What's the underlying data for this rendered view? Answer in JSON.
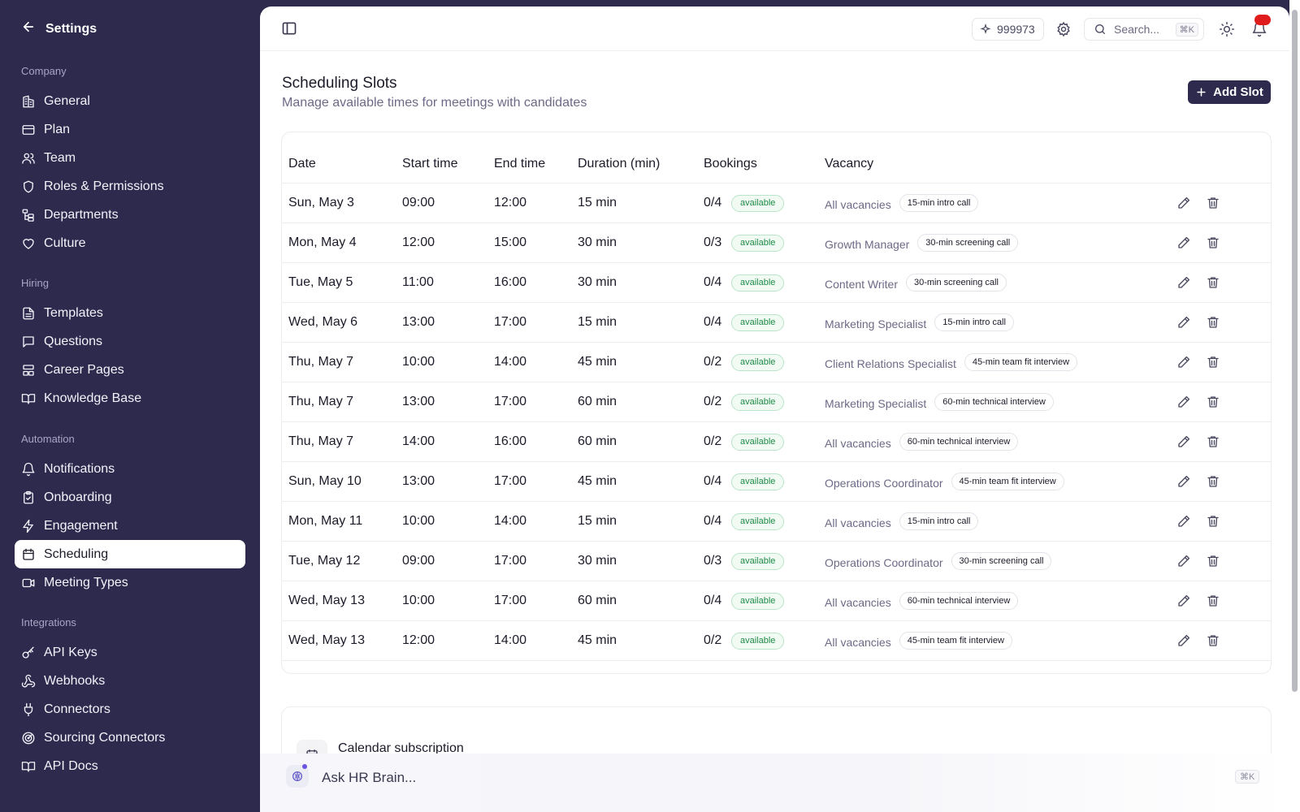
{
  "sidebar": {
    "title": "Settings",
    "sections": [
      {
        "label": "Company",
        "items": [
          {
            "label": "General",
            "icon": "building-icon"
          },
          {
            "label": "Plan",
            "icon": "credit-card-icon"
          },
          {
            "label": "Team",
            "icon": "users-icon"
          },
          {
            "label": "Roles & Permissions",
            "icon": "shield-icon"
          },
          {
            "label": "Departments",
            "icon": "org-chart-icon"
          },
          {
            "label": "Culture",
            "icon": "heart-icon"
          }
        ]
      },
      {
        "label": "Hiring",
        "items": [
          {
            "label": "Templates",
            "icon": "file-text-icon"
          },
          {
            "label": "Questions",
            "icon": "message-square-icon"
          },
          {
            "label": "Career Pages",
            "icon": "layout-icon"
          },
          {
            "label": "Knowledge Base",
            "icon": "book-open-icon"
          }
        ]
      },
      {
        "label": "Automation",
        "items": [
          {
            "label": "Notifications",
            "icon": "bell-icon"
          },
          {
            "label": "Onboarding",
            "icon": "clipboard-check-icon"
          },
          {
            "label": "Engagement",
            "icon": "zap-icon"
          },
          {
            "label": "Scheduling",
            "icon": "calendar-icon",
            "active": true
          },
          {
            "label": "Meeting Types",
            "icon": "video-icon"
          }
        ]
      },
      {
        "label": "Integrations",
        "items": [
          {
            "label": "API Keys",
            "icon": "key-icon"
          },
          {
            "label": "Webhooks",
            "icon": "webhook-icon"
          },
          {
            "label": "Connectors",
            "icon": "plug-icon"
          },
          {
            "label": "Sourcing Connectors",
            "icon": "radar-icon"
          },
          {
            "label": "API Docs",
            "icon": "book-icon"
          }
        ]
      }
    ]
  },
  "topbar": {
    "credits": "999973",
    "search_placeholder": "Search...",
    "search_shortcut": "⌘K"
  },
  "page": {
    "title": "Scheduling Slots",
    "subtitle": "Manage available times for meetings with candidates",
    "add_button": "Add Slot"
  },
  "table": {
    "columns": [
      "Date",
      "Start time",
      "End time",
      "Duration (min)",
      "Bookings",
      "Vacancy"
    ],
    "rows": [
      {
        "date": "Sun, May 3",
        "start": "09:00",
        "end": "12:00",
        "duration": "15 min",
        "bookings": "0/4",
        "status": "available",
        "vacancy": "All vacancies",
        "meeting": "15-min intro call"
      },
      {
        "date": "Mon, May 4",
        "start": "12:00",
        "end": "15:00",
        "duration": "30 min",
        "bookings": "0/3",
        "status": "available",
        "vacancy": "Growth Manager",
        "meeting": "30-min screening call"
      },
      {
        "date": "Tue, May 5",
        "start": "11:00",
        "end": "16:00",
        "duration": "30 min",
        "bookings": "0/4",
        "status": "available",
        "vacancy": "Content Writer",
        "meeting": "30-min screening call"
      },
      {
        "date": "Wed, May 6",
        "start": "13:00",
        "end": "17:00",
        "duration": "15 min",
        "bookings": "0/4",
        "status": "available",
        "vacancy": "Marketing Specialist",
        "meeting": "15-min intro call"
      },
      {
        "date": "Thu, May 7",
        "start": "10:00",
        "end": "14:00",
        "duration": "45 min",
        "bookings": "0/2",
        "status": "available",
        "vacancy": "Client Relations Specialist",
        "meeting": "45-min team fit interview"
      },
      {
        "date": "Thu, May 7",
        "start": "13:00",
        "end": "17:00",
        "duration": "60 min",
        "bookings": "0/2",
        "status": "available",
        "vacancy": "Marketing Specialist",
        "meeting": "60-min technical interview"
      },
      {
        "date": "Thu, May 7",
        "start": "14:00",
        "end": "16:00",
        "duration": "60 min",
        "bookings": "0/2",
        "status": "available",
        "vacancy": "All vacancies",
        "meeting": "60-min technical interview"
      },
      {
        "date": "Sun, May 10",
        "start": "13:00",
        "end": "17:00",
        "duration": "45 min",
        "bookings": "0/4",
        "status": "available",
        "vacancy": "Operations Coordinator",
        "meeting": "45-min team fit interview"
      },
      {
        "date": "Mon, May 11",
        "start": "10:00",
        "end": "14:00",
        "duration": "15 min",
        "bookings": "0/4",
        "status": "available",
        "vacancy": "All vacancies",
        "meeting": "15-min intro call"
      },
      {
        "date": "Tue, May 12",
        "start": "09:00",
        "end": "17:00",
        "duration": "30 min",
        "bookings": "0/3",
        "status": "available",
        "vacancy": "Operations Coordinator",
        "meeting": "30-min screening call"
      },
      {
        "date": "Wed, May 13",
        "start": "10:00",
        "end": "17:00",
        "duration": "60 min",
        "bookings": "0/4",
        "status": "available",
        "vacancy": "All vacancies",
        "meeting": "60-min technical interview"
      },
      {
        "date": "Wed, May 13",
        "start": "12:00",
        "end": "14:00",
        "duration": "45 min",
        "bookings": "0/2",
        "status": "available",
        "vacancy": "All vacancies",
        "meeting": "45-min team fit interview"
      }
    ]
  },
  "calendar": {
    "title": "Calendar subscription"
  },
  "ask": {
    "placeholder": "Ask HR Brain...",
    "shortcut": "⌘K"
  },
  "colors": {
    "sidebar_bg": "#2e2a4d",
    "primary_button": "#2e2a4d",
    "available_green": "#1d8a46",
    "notification_badge": "#e01b1b"
  }
}
